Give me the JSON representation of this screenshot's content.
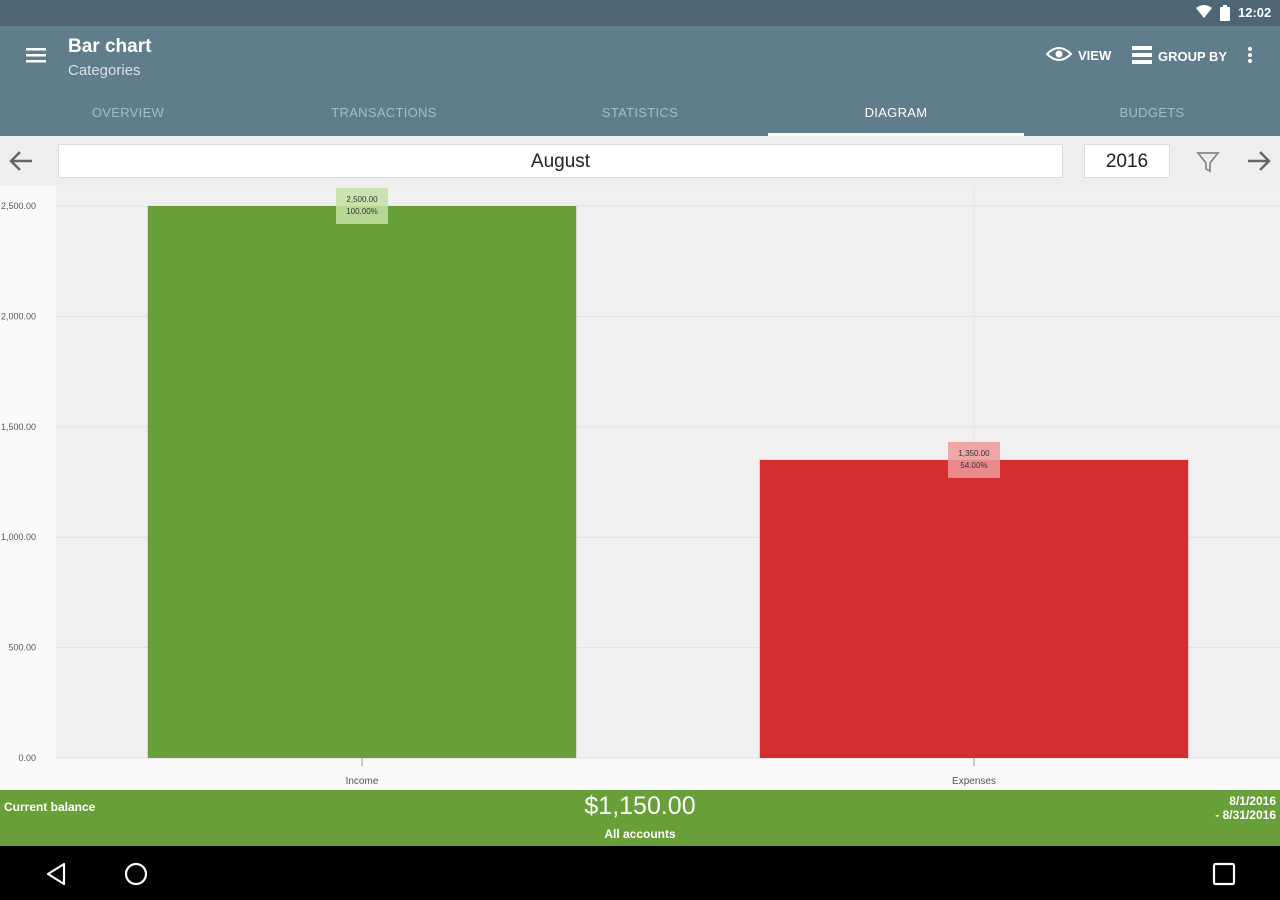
{
  "status_bar": {
    "time": "12:02"
  },
  "app_bar": {
    "title": "Bar chart",
    "subtitle": "Categories",
    "view_label": "VIEW",
    "group_by_label": "GROUP BY"
  },
  "tabs": [
    {
      "label": "OVERVIEW",
      "active": false
    },
    {
      "label": "TRANSACTIONS",
      "active": false
    },
    {
      "label": "STATISTICS",
      "active": false
    },
    {
      "label": "DIAGRAM",
      "active": true
    },
    {
      "label": "BUDGETS",
      "active": false
    }
  ],
  "period": {
    "month": "August",
    "year": "2016"
  },
  "colors": {
    "income": "#689f38",
    "expenses": "#d32f2f",
    "app_bar": "#607d8b",
    "footer": "#689f38"
  },
  "chart_data": {
    "type": "bar",
    "categories": [
      "Income",
      "Expenses"
    ],
    "values": [
      2500,
      1350
    ],
    "value_labels": [
      "2,500.00",
      "1,350.00"
    ],
    "percent_labels": [
      "100.00%",
      "54.00%"
    ],
    "ylim": [
      0,
      2500
    ],
    "yticks": [
      0,
      500,
      1000,
      1500,
      2000,
      2500
    ],
    "ytick_labels": [
      "0.00",
      "500.00",
      "1,000.00",
      "1,500.00",
      "2,000.00",
      "2,500.00"
    ],
    "grid": true
  },
  "footer": {
    "balance_label": "Current balance",
    "balance_value": "$1,150.00",
    "accounts_label": "All accounts",
    "date_start": "8/1/2016",
    "date_end": "- 8/31/2016"
  }
}
